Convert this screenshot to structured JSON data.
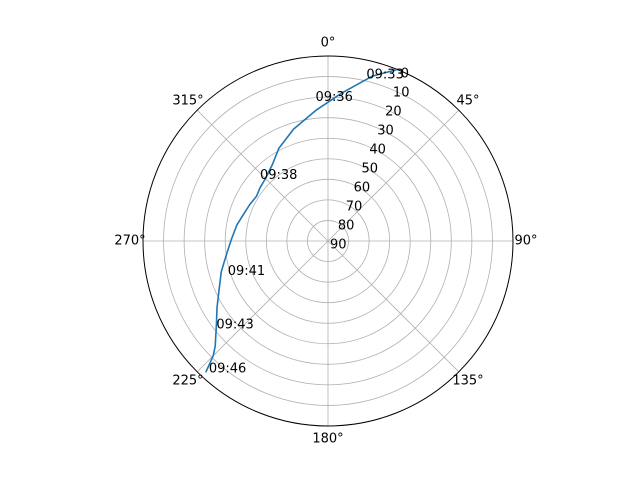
{
  "chart_data": {
    "type": "line",
    "projection": "polar",
    "title": "",
    "theta_zero_location": "N",
    "theta_direction": "clockwise",
    "theta_ticks": [
      0,
      45,
      90,
      135,
      180,
      225,
      270,
      315
    ],
    "theta_tick_labels": [
      "0°",
      "45°",
      "90°",
      "135°",
      "180°",
      "225°",
      "270°",
      "315°"
    ],
    "r_inverted": true,
    "r_lim": [
      90,
      0
    ],
    "r_ticks": [
      0,
      10,
      20,
      30,
      40,
      50,
      60,
      70,
      80,
      90
    ],
    "r_tick_labels": [
      "0",
      "10",
      "20",
      "30",
      "40",
      "50",
      "60",
      "70",
      "80",
      "90"
    ],
    "grid": true,
    "series": [
      {
        "color": "#1f77b4",
        "points": [
          {
            "az": 22,
            "el": 0
          },
          {
            "az": 15,
            "el": 7
          },
          {
            "az": 5,
            "el": 18
          },
          {
            "az": -5,
            "el": 26
          },
          {
            "az": -17,
            "el": 33
          },
          {
            "az": -28,
            "el": 39
          },
          {
            "az": -36,
            "el": 44
          },
          {
            "az": -45,
            "el": 47
          },
          {
            "az": -52,
            "el": 48
          },
          {
            "az": -58,
            "el": 49
          },
          {
            "az": -65,
            "el": 48
          },
          {
            "az": -72,
            "el": 47
          },
          {
            "az": -80,
            "el": 45
          },
          {
            "az": -89,
            "el": 43
          },
          {
            "az": -98,
            "el": 40
          },
          {
            "az": -106,
            "el": 36
          },
          {
            "az": -114,
            "el": 32
          },
          {
            "az": -121,
            "el": 27
          },
          {
            "az": -127,
            "el": 22
          },
          {
            "az": -133,
            "el": 15
          },
          {
            "az": -135,
            "el": 11
          },
          {
            "az": -137,
            "el": 3
          }
        ]
      }
    ],
    "annotations": [
      {
        "text": "09:33",
        "az": 13,
        "el": 7
      },
      {
        "text": "09:36",
        "az": -5,
        "el": 20
      },
      {
        "text": "09:38",
        "az": -46,
        "el": 44
      },
      {
        "text": "09:41",
        "az": -107,
        "el": 39
      },
      {
        "text": "09:43",
        "az": -127,
        "el": 22
      },
      {
        "text": "09:46",
        "az": -137,
        "el": 5
      }
    ]
  }
}
